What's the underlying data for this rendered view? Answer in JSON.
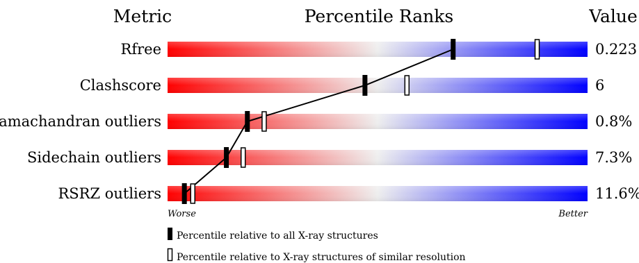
{
  "chart_data": {
    "type": "bar",
    "header": {
      "metric": "Metric",
      "title": "Percentile Ranks",
      "value": "Value"
    },
    "axis": {
      "worse": "Worse",
      "better": "Better",
      "xlim": [
        0,
        100
      ]
    },
    "rows": [
      {
        "label": "Rfree",
        "value_text": "0.223",
        "all_percentile": 68,
        "similar_percentile": 88
      },
      {
        "label": "Clashscore",
        "value_text": "6",
        "all_percentile": 47,
        "similar_percentile": 57
      },
      {
        "label": "Ramachandran outliers",
        "value_text": "0.8%",
        "all_percentile": 19,
        "similar_percentile": 23
      },
      {
        "label": "Sidechain outliers",
        "value_text": "7.3%",
        "all_percentile": 14,
        "similar_percentile": 18
      },
      {
        "label": "RSRZ outliers",
        "value_text": "11.6%",
        "all_percentile": 4,
        "similar_percentile": 6
      }
    ],
    "legend": {
      "all": "Percentile relative to all X-ray structures",
      "similar": "Percentile relative to X-ray structures of similar resolution"
    },
    "colors": {
      "worse": "#ff0000",
      "middle": "#eeeeee",
      "better": "#0000ff",
      "marker": "#000000"
    }
  }
}
